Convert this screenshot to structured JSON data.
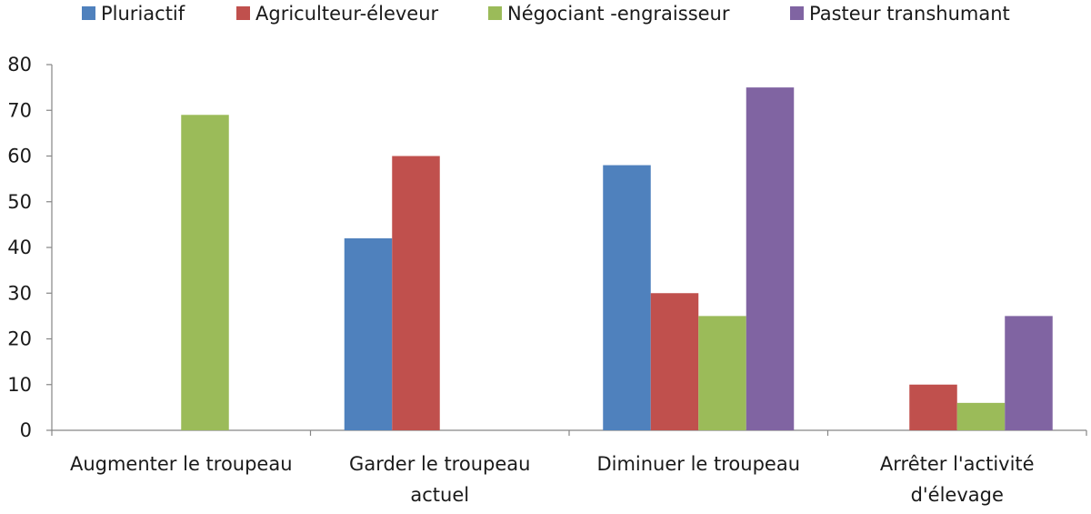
{
  "chart_data": {
    "type": "bar",
    "title": "",
    "xlabel": "",
    "ylabel": "",
    "ylim": [
      0,
      80
    ],
    "yticks": [
      0,
      10,
      20,
      30,
      40,
      50,
      60,
      70,
      80
    ],
    "grid": false,
    "legend_position": "top",
    "categories": [
      [
        "Augmenter le troupeau"
      ],
      [
        "Garder le troupeau",
        "actuel"
      ],
      [
        "Diminuer le troupeau"
      ],
      [
        "Arrêter l'activité",
        "d'élevage"
      ]
    ],
    "series": [
      {
        "name": "Pluriactif",
        "color": "#4f81bd",
        "values": [
          0,
          42,
          58,
          0
        ]
      },
      {
        "name": "Agriculteur-éleveur",
        "color": "#c0504d",
        "values": [
          0,
          60,
          30,
          10
        ]
      },
      {
        "name": "Négociant -engraisseur",
        "color": "#9bbb59",
        "values": [
          69,
          0,
          25,
          6
        ]
      },
      {
        "name": "Pasteur transhumant",
        "color": "#8064a2",
        "values": [
          0,
          0,
          75,
          25
        ]
      }
    ]
  }
}
